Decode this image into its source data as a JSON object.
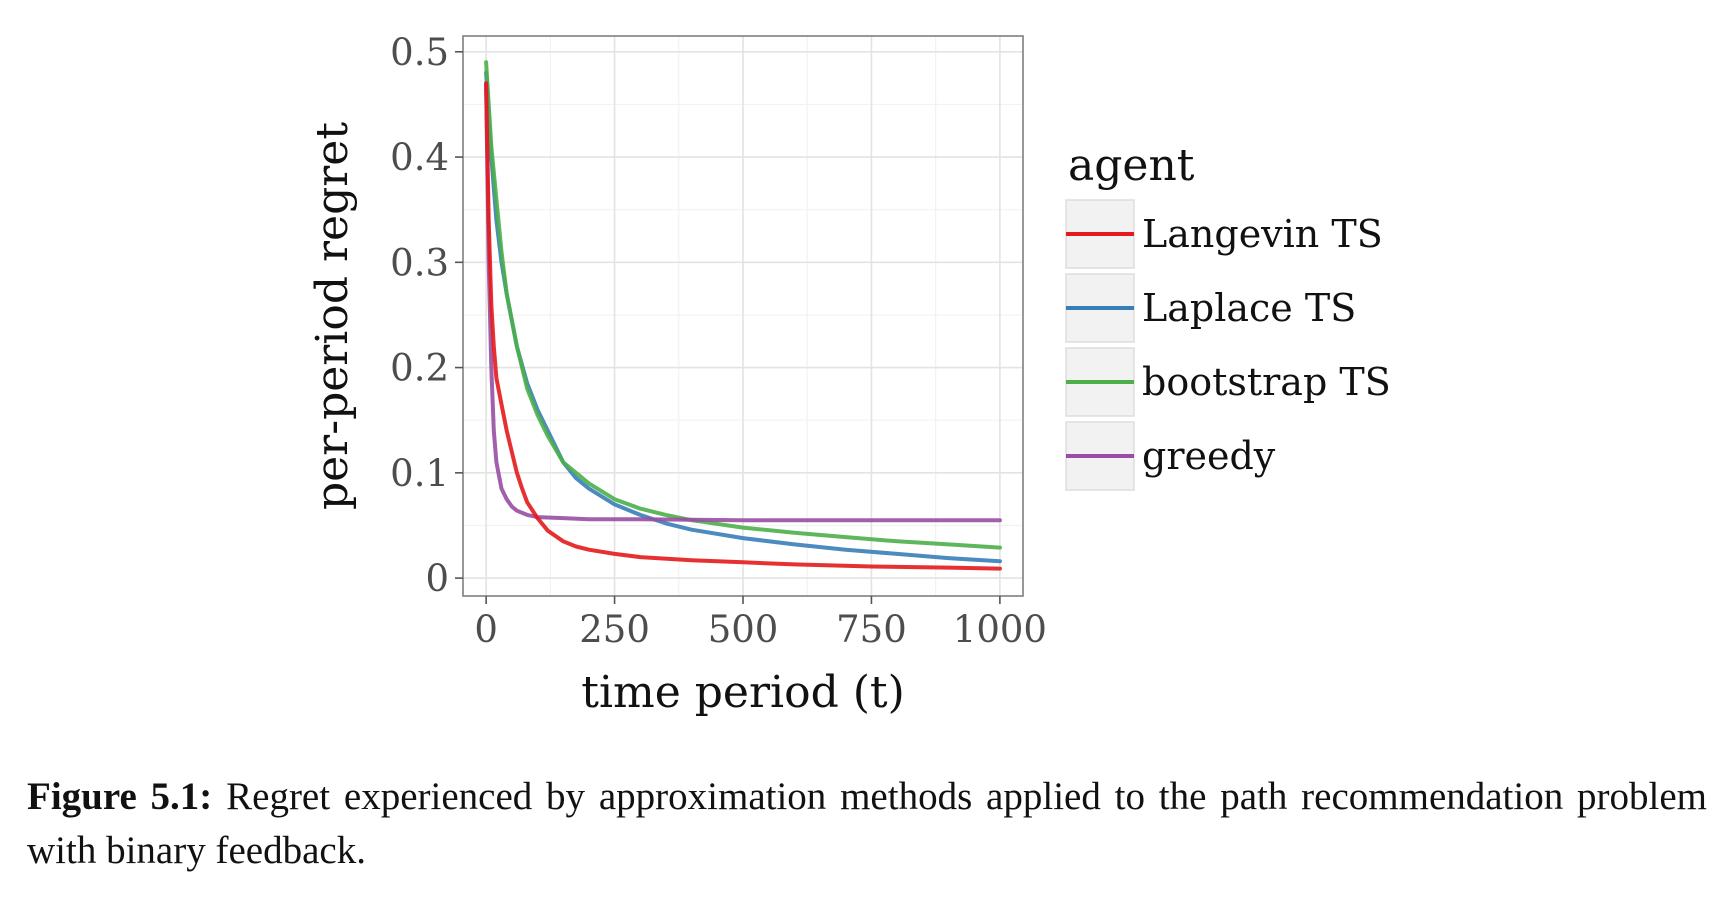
{
  "caption": {
    "label": "Figure 5.1:",
    "text": "Regret experienced by approximation methods applied to the path recommendation problem with binary feedback."
  },
  "chart_data": {
    "type": "line",
    "title": "",
    "xlabel": "time period (t)",
    "ylabel": "per-period regret",
    "xlim": [
      -45,
      1045
    ],
    "ylim": [
      -0.017,
      0.515
    ],
    "xticks": [
      0,
      250,
      500,
      750,
      1000
    ],
    "xtick_labels": [
      "0",
      "250",
      "500",
      "750",
      "1000"
    ],
    "yticks": [
      0,
      0.1,
      0.2,
      0.3,
      0.4,
      0.5
    ],
    "ytick_labels": [
      "0",
      "0.1",
      "0.2",
      "0.3",
      "0.4",
      "0.5"
    ],
    "grid": true,
    "legend": {
      "title": "agent",
      "placement": "right"
    },
    "series": [
      {
        "name": "Langevin TS",
        "color": "#e41a1c",
        "x": [
          0,
          5,
          10,
          15,
          20,
          30,
          40,
          50,
          60,
          70,
          80,
          100,
          120,
          150,
          175,
          200,
          250,
          300,
          400,
          500,
          600,
          750,
          900,
          1000
        ],
        "y": [
          0.47,
          0.34,
          0.26,
          0.22,
          0.19,
          0.165,
          0.14,
          0.12,
          0.1,
          0.085,
          0.072,
          0.057,
          0.045,
          0.035,
          0.03,
          0.027,
          0.023,
          0.02,
          0.017,
          0.015,
          0.013,
          0.011,
          0.01,
          0.009
        ]
      },
      {
        "name": "Laplace TS",
        "color": "#377eb8",
        "x": [
          0,
          10,
          20,
          30,
          40,
          50,
          60,
          80,
          100,
          120,
          150,
          175,
          200,
          250,
          300,
          350,
          400,
          500,
          600,
          700,
          800,
          900,
          1000
        ],
        "y": [
          0.48,
          0.4,
          0.34,
          0.3,
          0.27,
          0.245,
          0.22,
          0.185,
          0.16,
          0.14,
          0.11,
          0.095,
          0.085,
          0.07,
          0.06,
          0.052,
          0.046,
          0.038,
          0.032,
          0.027,
          0.023,
          0.019,
          0.016
        ]
      },
      {
        "name": "bootstrap TS",
        "color": "#4daf4a",
        "x": [
          0,
          10,
          20,
          30,
          40,
          50,
          60,
          80,
          100,
          120,
          150,
          175,
          200,
          250,
          300,
          350,
          400,
          500,
          600,
          700,
          800,
          900,
          1000
        ],
        "y": [
          0.49,
          0.41,
          0.36,
          0.31,
          0.27,
          0.245,
          0.22,
          0.18,
          0.155,
          0.135,
          0.11,
          0.1,
          0.09,
          0.075,
          0.066,
          0.06,
          0.055,
          0.048,
          0.043,
          0.039,
          0.035,
          0.032,
          0.029
        ]
      },
      {
        "name": "greedy",
        "color": "#984ea3",
        "x": [
          0,
          5,
          10,
          15,
          20,
          30,
          40,
          50,
          60,
          80,
          100,
          150,
          200,
          300,
          500,
          750,
          1000
        ],
        "y": [
          0.47,
          0.3,
          0.2,
          0.14,
          0.11,
          0.085,
          0.075,
          0.068,
          0.064,
          0.06,
          0.058,
          0.057,
          0.056,
          0.056,
          0.055,
          0.055,
          0.055
        ]
      }
    ]
  }
}
